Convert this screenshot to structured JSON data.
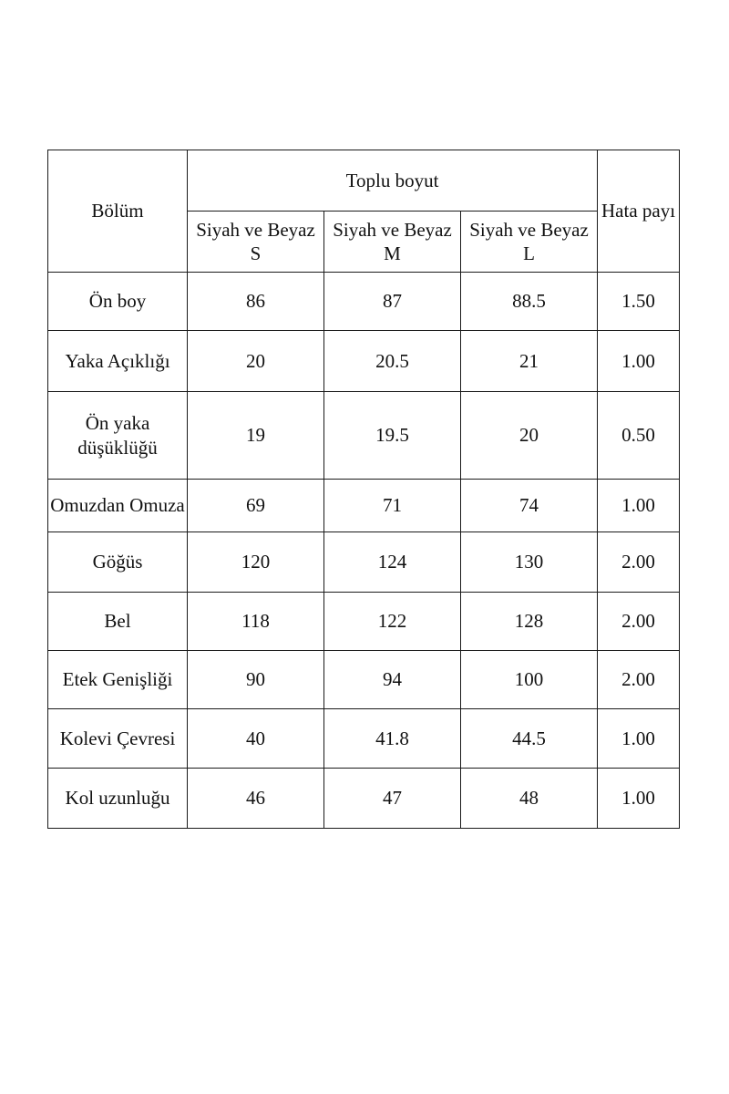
{
  "table": {
    "header": {
      "part": "Bölüm",
      "group": "Toplu boyut",
      "tolerance": "Hata payı",
      "sizes": [
        {
          "color": "Siyah ve Beyaz",
          "size": "S"
        },
        {
          "color": "Siyah ve Beyaz",
          "size": "M"
        },
        {
          "color": "Siyah ve Beyaz",
          "size": "L"
        }
      ]
    },
    "rows": [
      {
        "part": "Ön boy",
        "s": "86",
        "m": "87",
        "l": "88.5",
        "tolerance": "1.50"
      },
      {
        "part": "Yaka Açıklığı",
        "s": "20",
        "m": "20.5",
        "l": "21",
        "tolerance": "1.00"
      },
      {
        "part": "Ön yaka düşüklüğü",
        "s": "19",
        "m": "19.5",
        "l": "20",
        "tolerance": "0.50"
      },
      {
        "part": "Omuzdan Omuza",
        "s": "69",
        "m": "71",
        "l": "74",
        "tolerance": "1.00"
      },
      {
        "part": "Göğüs",
        "s": "120",
        "m": "124",
        "l": "130",
        "tolerance": "2.00"
      },
      {
        "part": "Bel",
        "s": "118",
        "m": "122",
        "l": "128",
        "tolerance": "2.00"
      },
      {
        "part": "Etek Genişliği",
        "s": "90",
        "m": "94",
        "l": "100",
        "tolerance": "2.00"
      },
      {
        "part": "Kolevi Çevresi",
        "s": "40",
        "m": "41.8",
        "l": "44.5",
        "tolerance": "1.00"
      },
      {
        "part": "Kol uzunluğu",
        "s": "46",
        "m": "47",
        "l": "48",
        "tolerance": "1.00"
      }
    ]
  }
}
